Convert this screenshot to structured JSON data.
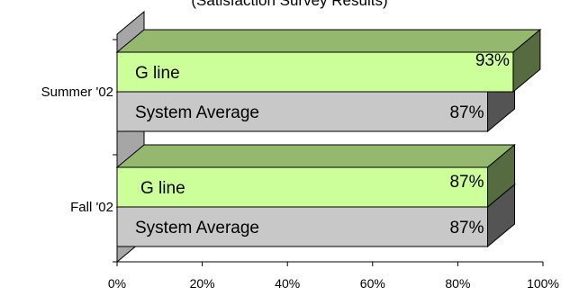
{
  "chart_data": {
    "type": "bar",
    "orientation": "horizontal",
    "style": "3d",
    "title": "(Satisfaction Survey Results)",
    "categories": [
      "Summer '02",
      "Fall '02"
    ],
    "series": [
      {
        "name": "G line",
        "values": [
          93,
          87
        ],
        "color": "#CCFF99"
      },
      {
        "name": "System Average",
        "values": [
          87,
          87
        ],
        "color": "#C8C8C8"
      }
    ],
    "data_labels": [
      [
        "93%",
        "87%"
      ],
      [
        "87%",
        "87%"
      ]
    ],
    "xlim": [
      0,
      100
    ],
    "x_ticks": [
      "0%",
      "20%",
      "40%",
      "60%",
      "80%",
      "100%"
    ],
    "xlabel": "",
    "ylabel": "",
    "grid": false,
    "legend": "none"
  }
}
